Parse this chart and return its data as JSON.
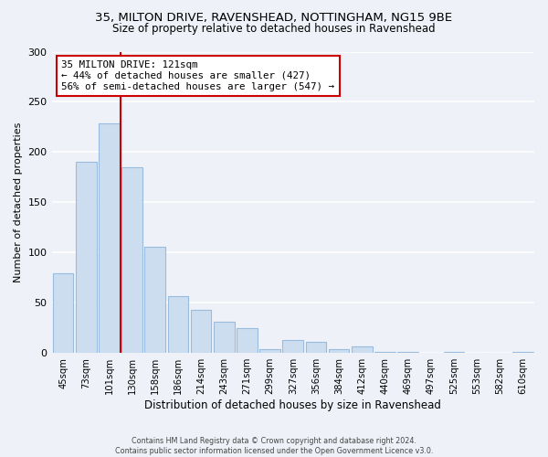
{
  "title_line1": "35, MILTON DRIVE, RAVENSHEAD, NOTTINGHAM, NG15 9BE",
  "title_line2": "Size of property relative to detached houses in Ravenshead",
  "xlabel": "Distribution of detached houses by size in Ravenshead",
  "ylabel": "Number of detached properties",
  "bar_labels": [
    "45sqm",
    "73sqm",
    "101sqm",
    "130sqm",
    "158sqm",
    "186sqm",
    "214sqm",
    "243sqm",
    "271sqm",
    "299sqm",
    "327sqm",
    "356sqm",
    "384sqm",
    "412sqm",
    "440sqm",
    "469sqm",
    "497sqm",
    "525sqm",
    "553sqm",
    "582sqm",
    "610sqm"
  ],
  "bar_values": [
    79,
    190,
    229,
    185,
    106,
    57,
    43,
    31,
    25,
    4,
    13,
    11,
    4,
    7,
    1,
    1,
    0,
    1,
    0,
    0,
    1
  ],
  "bar_color": "#ccddf0",
  "bar_edge_color": "#99bbdd",
  "ylim": [
    0,
    300
  ],
  "yticks": [
    0,
    50,
    100,
    150,
    200,
    250,
    300
  ],
  "vline_color": "#cc0000",
  "annotation_title": "35 MILTON DRIVE: 121sqm",
  "annotation_line1": "← 44% of detached houses are smaller (427)",
  "annotation_line2": "56% of semi-detached houses are larger (547) →",
  "annotation_box_color": "#ffffff",
  "annotation_box_edge": "#cc0000",
  "footer_line1": "Contains HM Land Registry data © Crown copyright and database right 2024.",
  "footer_line2": "Contains public sector information licensed under the Open Government Licence v3.0.",
  "background_color": "#eef2f8",
  "plot_background": "#eef2f8",
  "grid_color": "#ffffff"
}
